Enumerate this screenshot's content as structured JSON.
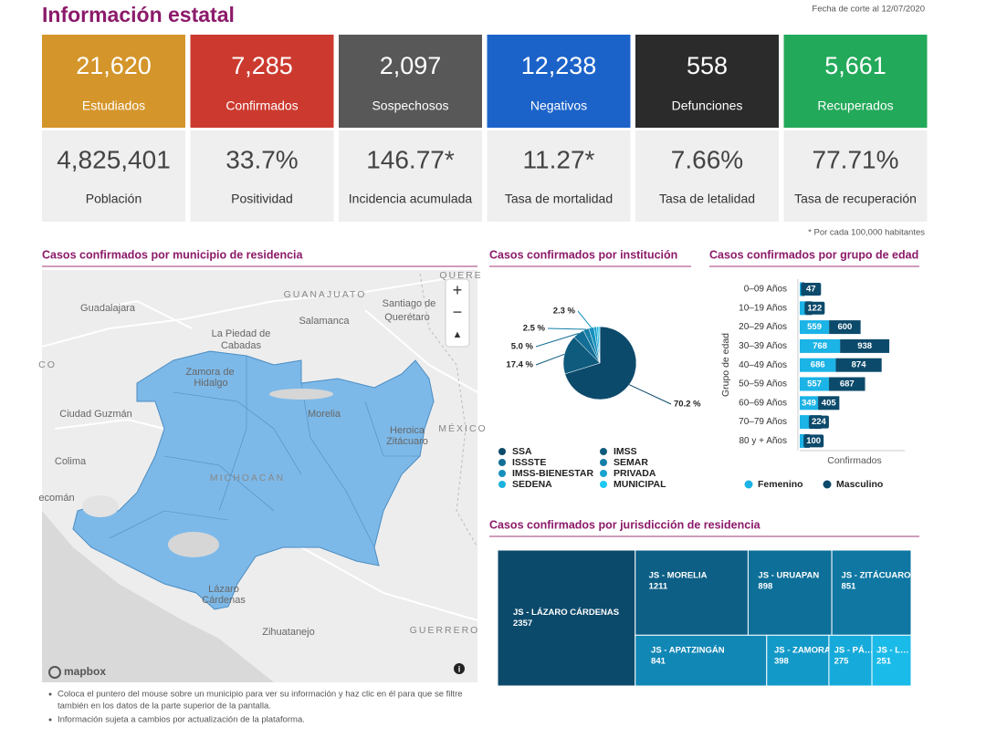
{
  "header": {
    "title": "Información estatal",
    "cutoff_date": "Fecha de corte al 12/07/2020"
  },
  "summary_cards": [
    {
      "value": "21,620",
      "label": "Estudiados",
      "color": "#d4952a"
    },
    {
      "value": "7,285",
      "label": "Confirmados",
      "color": "#cc3a2f"
    },
    {
      "value": "2,097",
      "label": "Sospechosos",
      "color": "#585858"
    },
    {
      "value": "12,238",
      "label": "Negativos",
      "color": "#1c63c9"
    },
    {
      "value": "558",
      "label": "Defunciones",
      "color": "#2b2b2b"
    },
    {
      "value": "5,661",
      "label": "Recuperados",
      "color": "#23a95a"
    }
  ],
  "rate_cards": [
    {
      "value": "4,825,401",
      "label": "Población"
    },
    {
      "value": "33.7%",
      "label": "Positividad"
    },
    {
      "value": "146.77*",
      "label": "Incidencia acumulada"
    },
    {
      "value": "11.27*",
      "label": "Tasa de mortalidad"
    },
    {
      "value": "7.66%",
      "label": "Tasa de letalidad"
    },
    {
      "value": "77.71%",
      "label": "Tasa de recuperación"
    }
  ],
  "rate_note": "* Por cada 100,000 habitantes",
  "map": {
    "title": "Casos confirmados por municipio de residencia",
    "labels": [
      "GUANAJUATO",
      "Santiago de",
      "Querétaro",
      "Guadalajara",
      "Salamanca",
      "La Piedad de",
      "Cabadas",
      "Zamora de",
      "Hidalgo",
      "Morelia",
      "Ciudad Guzmán",
      "Colima",
      "MICHOACÁN",
      "Heroica",
      "Zitácuaro",
      "MÉXICO",
      "Lázaro",
      "Cárdenas",
      "Zihuatanejo",
      "GUERRERO",
      "CO",
      "ecomán",
      "QUERE"
    ],
    "zoom_in": "+",
    "zoom_out": "−",
    "compass": "▲",
    "attribution": "mapbox",
    "info": "i"
  },
  "notes": [
    [
      "Coloca el puntero del mouse sobre un municipio para ver su información y haz clic en él para que se filtre",
      "también en los datos de la parte superior de la pantalla."
    ],
    [
      "Información sujeta a cambios por actualización de la plataforma."
    ]
  ],
  "chart_data": [
    {
      "type": "pie",
      "title": "Casos confirmados por institución",
      "categories": [
        "SSA",
        "IMSS",
        "ISSSTE",
        "SEMAR",
        "IMSS-BIENESTAR",
        "PRIVADA",
        "SEDENA",
        "MUNICIPAL"
      ],
      "values": [
        70.2,
        17.4,
        5.0,
        2.5,
        2.3,
        1.2,
        0.9,
        0.5
      ],
      "value_labels": [
        "70.2 %",
        "17.4 %",
        "5.0 %",
        "2.5 %",
        "2.3 %",
        null,
        null,
        null
      ],
      "colors": [
        "#0c4a6b",
        "#0f5b7e",
        "#126e95",
        "#157fa9",
        "#1790bd",
        "#19a2cf",
        "#1bb3de",
        "#1ec8f1"
      ]
    },
    {
      "type": "bar",
      "orientation": "horizontal",
      "stacked": true,
      "title": "Casos confirmados por grupo de edad",
      "categories": [
        "0–09 Años",
        "10–19 Años",
        "20–29 Años",
        "30–39 Años",
        "40–49 Años",
        "50–59 Años",
        "60–69 Años",
        "70–79 Años",
        "80 y + Años"
      ],
      "xlabel": "Confirmados",
      "ylabel": "Grupo de edad",
      "xlim": [
        0,
        2000
      ],
      "legend": "bottom",
      "series": [
        {
          "name": "Femenino",
          "color": "#1cb3e6",
          "values": [
            40,
            110,
            559,
            768,
            686,
            557,
            349,
            190,
            90
          ],
          "value_labels": [
            null,
            null,
            "559",
            "768",
            "686",
            "557",
            "349",
            null,
            null
          ]
        },
        {
          "name": "Masculino",
          "color": "#0c4a6b",
          "values": [
            47,
            122,
            600,
            938,
            874,
            687,
            405,
            224,
            100
          ]
        }
      ]
    },
    {
      "type": "treemap",
      "title": "Casos confirmados por jurisdicción de residencia",
      "categories": [
        "JS - LÁZARO CÁRDENAS",
        "JS - MORELIA",
        "JS - URUAPAN",
        "JS - ZITÁCUARO",
        "JS - APATZINGÁN",
        "JS - ZAMORA",
        "JS - PÁ…",
        "JS - L…"
      ],
      "values": [
        2357,
        1211,
        898,
        851,
        841,
        398,
        275,
        251
      ],
      "colors": [
        "#0c4a6b",
        "#0d5f86",
        "#0e6f98",
        "#0f77a2",
        "#1187b6",
        "#1399c8",
        "#16aada",
        "#1bbbe9"
      ]
    }
  ]
}
